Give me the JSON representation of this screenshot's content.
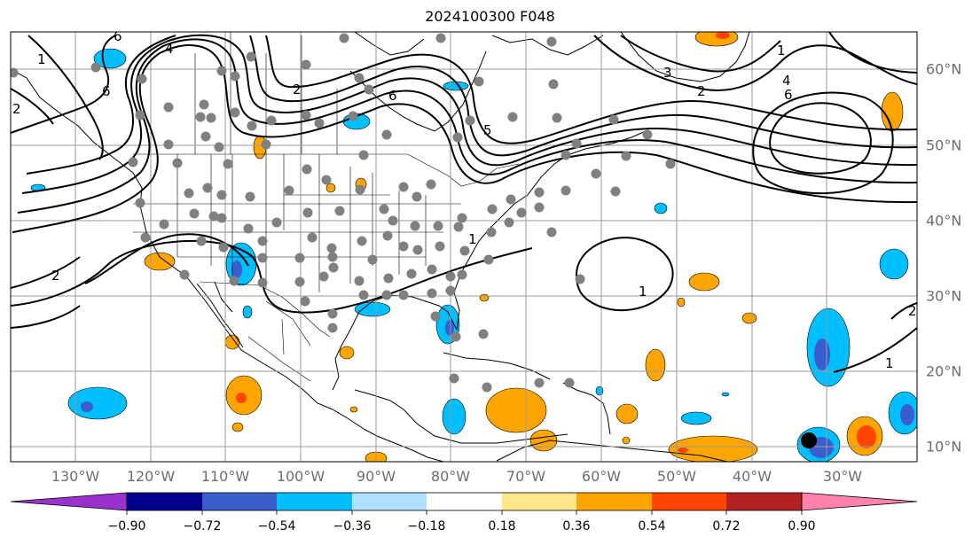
{
  "title": "2024100300 F048",
  "map": {
    "projection": "PlateCarree",
    "lon_range": [
      -140,
      -18
    ],
    "lat_range": [
      7,
      64
    ],
    "lon_labels": [
      "130°W",
      "120°W",
      "110°W",
      "100°W",
      "90°W",
      "80°W",
      "70°W",
      "60°W",
      "50°W",
      "40°W",
      "30°W"
    ],
    "lat_labels": [
      "60°N",
      "50°N",
      "40°N",
      "30°N",
      "20°N",
      "10°N"
    ],
    "gridlines": true,
    "marker_color": "#808080",
    "highlight_marker_color": "#000000"
  },
  "colorbar": {
    "ticks": [
      "−0.90",
      "−0.72",
      "−0.54",
      "−0.36",
      "−0.18",
      "0.18",
      "0.36",
      "0.54",
      "0.72",
      "0.90"
    ],
    "colors": [
      "#9932cc",
      "#00008b",
      "#3a5fcd",
      "#00bfff",
      "#b0e0ff",
      "#ffffff",
      "#ffe68a",
      "#ffa500",
      "#ff4500",
      "#b22222",
      "#ff82ab"
    ],
    "extend": "both"
  },
  "contour_labels": [
    "6",
    "4",
    "1",
    "6",
    "2",
    "6",
    "5",
    "3",
    "1",
    "4",
    "6",
    "2",
    "2",
    "1",
    "1",
    "2",
    "1",
    "2"
  ]
}
